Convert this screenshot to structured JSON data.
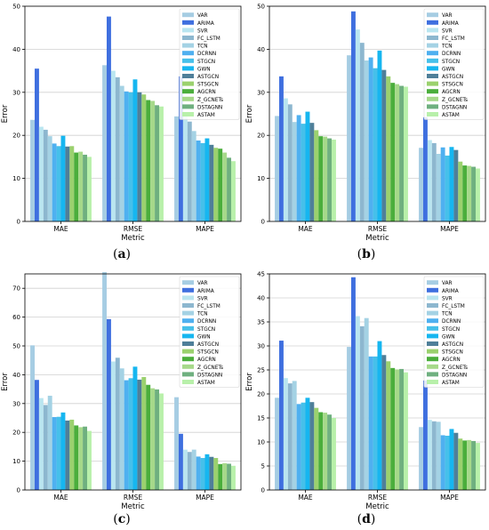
{
  "figure": {
    "panels": [
      {
        "open": "(",
        "letter": "a",
        "close": ")"
      },
      {
        "open": "(",
        "letter": "b",
        "close": ")"
      },
      {
        "open": "(",
        "letter": "c",
        "close": ")"
      },
      {
        "open": "(",
        "letter": "d",
        "close": ")"
      }
    ]
  },
  "colors": [
    "#a6cde3",
    "#3f6fdf",
    "#b9e5f0",
    "#8db7cf",
    "#a4d2e4",
    "#4fb0f0",
    "#46c0ea",
    "#16b6f0",
    "#4f7f99",
    "#9bd16e",
    "#4bae3c",
    "#a6d98a",
    "#6fb07f",
    "#b8f0aa"
  ],
  "chart_data": [
    {
      "type": "bar",
      "categories": [
        "MAE",
        "RMSE",
        "MAPE"
      ],
      "xlabel": "Metric",
      "ylabel": "Error",
      "ylim": [
        0,
        50
      ],
      "yticks": [
        0,
        10,
        20,
        30,
        40,
        50
      ],
      "grid": true,
      "legend_position": "top-right",
      "series": [
        {
          "name": "VAR",
          "values": [
            23.6,
            36.3,
            24.4
          ]
        },
        {
          "name": "ARIMA",
          "values": [
            35.5,
            47.6,
            33.7
          ]
        },
        {
          "name": "SVR",
          "values": [
            22.0,
            35.0,
            25.0
          ]
        },
        {
          "name": "FC_LSTM",
          "values": [
            21.3,
            33.5,
            23.2
          ]
        },
        {
          "name": "TCN",
          "values": [
            19.8,
            31.5,
            21.0
          ]
        },
        {
          "name": "DCRNN",
          "values": [
            18.1,
            30.2,
            18.8
          ]
        },
        {
          "name": "STGCN",
          "values": [
            17.5,
            30.0,
            18.2
          ]
        },
        {
          "name": "GWN",
          "values": [
            19.9,
            33.0,
            19.3
          ]
        },
        {
          "name": "ASTGCN",
          "values": [
            17.4,
            30.0,
            17.8
          ]
        },
        {
          "name": "STSGCN",
          "values": [
            17.5,
            29.5,
            17.1
          ]
        },
        {
          "name": "AGCRN",
          "values": [
            16.0,
            28.2,
            16.9
          ]
        },
        {
          "name": "Z_GCNETs",
          "values": [
            16.2,
            28.0,
            16.0
          ]
        },
        {
          "name": "DSTAGNN",
          "values": [
            15.5,
            27.0,
            14.8
          ]
        },
        {
          "name": "ASTAM",
          "values": [
            15.0,
            26.7,
            14.0
          ]
        }
      ]
    },
    {
      "type": "bar",
      "categories": [
        "MAE",
        "RMSE",
        "MAPE"
      ],
      "xlabel": "Metric",
      "ylabel": "Error",
      "ylim": [
        0,
        50
      ],
      "yticks": [
        0,
        10,
        20,
        30,
        40,
        50
      ],
      "grid": true,
      "legend_position": "top-right",
      "series": [
        {
          "name": "VAR",
          "values": [
            24.5,
            38.6,
            17.1
          ]
        },
        {
          "name": "ARIMA",
          "values": [
            33.7,
            48.8,
            24.2
          ]
        },
        {
          "name": "SVR",
          "values": [
            28.6,
            44.6,
            18.9
          ]
        },
        {
          "name": "FC_LSTM",
          "values": [
            27.2,
            41.5,
            18.2
          ]
        },
        {
          "name": "TCN",
          "values": [
            23.1,
            37.4,
            15.7
          ]
        },
        {
          "name": "DCRNN",
          "values": [
            24.7,
            38.1,
            17.2
          ]
        },
        {
          "name": "STGCN",
          "values": [
            22.7,
            35.6,
            15.3
          ]
        },
        {
          "name": "GWN",
          "values": [
            25.5,
            39.7,
            17.3
          ]
        },
        {
          "name": "ASTGCN",
          "values": [
            22.9,
            35.2,
            16.6
          ]
        },
        {
          "name": "STSGCN",
          "values": [
            21.2,
            33.7,
            13.9
          ]
        },
        {
          "name": "AGCRN",
          "values": [
            19.8,
            32.2,
            13.0
          ]
        },
        {
          "name": "Z_GCNETs",
          "values": [
            19.7,
            31.9,
            12.9
          ]
        },
        {
          "name": "DSTAGNN",
          "values": [
            19.3,
            31.5,
            12.7
          ]
        },
        {
          "name": "ASTAM",
          "values": [
            19.0,
            31.3,
            12.3
          ]
        }
      ]
    },
    {
      "type": "bar",
      "categories": [
        "MAE",
        "RMSE",
        "MAPE"
      ],
      "xlabel": "Metric",
      "ylabel": "Error",
      "ylim": [
        0,
        75
      ],
      "yticks": [
        0,
        10,
        20,
        30,
        40,
        50,
        60,
        70
      ],
      "grid": true,
      "legend_position": "top-right",
      "series": [
        {
          "name": "VAR",
          "values": [
            50.2,
            75.6,
            32.2
          ]
        },
        {
          "name": "ARIMA",
          "values": [
            38.2,
            59.3,
            19.5
          ]
        },
        {
          "name": "SVR",
          "values": [
            31.9,
            44.6,
            14.0
          ]
        },
        {
          "name": "FC_LSTM",
          "values": [
            29.5,
            45.9,
            13.2
          ]
        },
        {
          "name": "TCN",
          "values": [
            32.7,
            42.2,
            14.0
          ]
        },
        {
          "name": "DCRNN",
          "values": [
            25.3,
            38.1,
            11.6
          ]
        },
        {
          "name": "STGCN",
          "values": [
            25.4,
            38.8,
            11.1
          ]
        },
        {
          "name": "GWN",
          "values": [
            26.9,
            42.8,
            12.4
          ]
        },
        {
          "name": "ASTGCN",
          "values": [
            24.1,
            38.3,
            11.5
          ]
        },
        {
          "name": "STSGCN",
          "values": [
            24.4,
            39.2,
            11.1
          ]
        },
        {
          "name": "AGCRN",
          "values": [
            22.4,
            36.5,
            9.0
          ]
        },
        {
          "name": "Z_GCNETs",
          "values": [
            21.8,
            35.3,
            9.3
          ]
        },
        {
          "name": "DSTAGNN",
          "values": [
            22.0,
            34.9,
            9.1
          ]
        },
        {
          "name": "ASTAM",
          "values": [
            20.5,
            33.5,
            8.4
          ]
        }
      ]
    },
    {
      "type": "bar",
      "categories": [
        "MAE",
        "RMSE",
        "MAPE"
      ],
      "xlabel": "Metric",
      "ylabel": "Error",
      "ylim": [
        0,
        45
      ],
      "yticks": [
        0,
        5,
        10,
        15,
        20,
        25,
        30,
        35,
        40,
        45
      ],
      "grid": true,
      "legend_position": "top-right",
      "series": [
        {
          "name": "VAR",
          "values": [
            19.2,
            29.8,
            13.1
          ]
        },
        {
          "name": "ARIMA",
          "values": [
            31.1,
            44.3,
            22.8
          ]
        },
        {
          "name": "SVR",
          "values": [
            23.3,
            36.2,
            14.6
          ]
        },
        {
          "name": "FC_LSTM",
          "values": [
            22.2,
            34.1,
            14.3
          ]
        },
        {
          "name": "TCN",
          "values": [
            22.7,
            35.8,
            14.2
          ]
        },
        {
          "name": "DCRNN",
          "values": [
            17.9,
            27.8,
            11.4
          ]
        },
        {
          "name": "STGCN",
          "values": [
            18.2,
            27.8,
            11.3
          ]
        },
        {
          "name": "GWN",
          "values": [
            19.2,
            31.0,
            12.7
          ]
        },
        {
          "name": "ASTGCN",
          "values": [
            18.3,
            28.1,
            11.9
          ]
        },
        {
          "name": "STSGCN",
          "values": [
            17.1,
            26.8,
            10.7
          ]
        },
        {
          "name": "AGCRN",
          "values": [
            16.2,
            25.4,
            10.3
          ]
        },
        {
          "name": "Z_GCNETs",
          "values": [
            16.1,
            25.1,
            10.4
          ]
        },
        {
          "name": "DSTAGNN",
          "values": [
            15.7,
            25.2,
            10.2
          ]
        },
        {
          "name": "ASTAM",
          "values": [
            15.0,
            24.5,
            9.8
          ]
        }
      ]
    }
  ]
}
